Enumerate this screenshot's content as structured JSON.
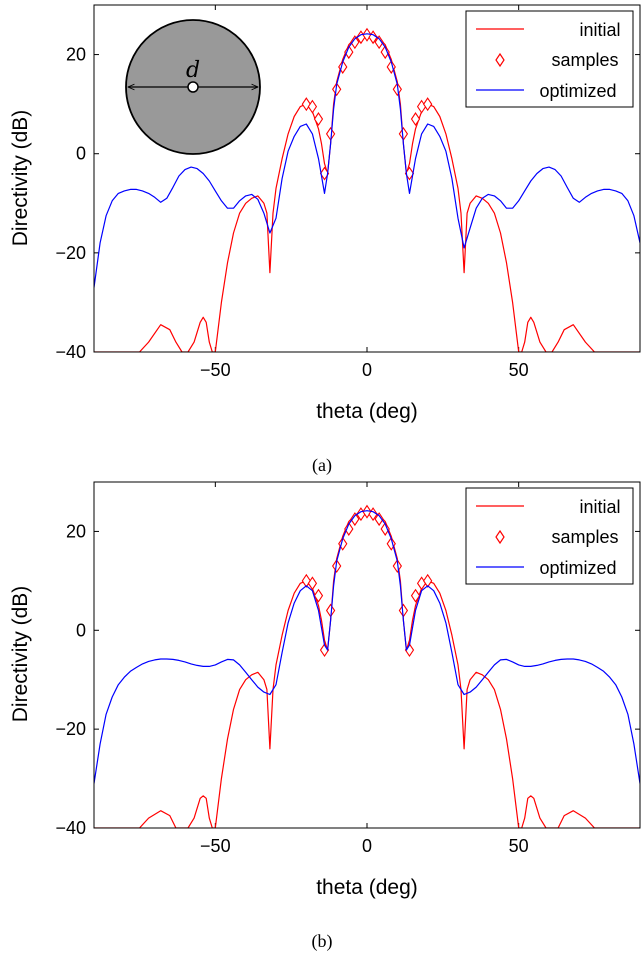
{
  "captions": [
    "(a)",
    "(b)"
  ],
  "chart_data": [
    {
      "type": "line",
      "caption": "(a)",
      "xlabel": "theta (deg)",
      "ylabel": "Directivity (dB)",
      "xlim": [
        -90,
        90
      ],
      "ylim": [
        -40,
        30
      ],
      "xticks": [
        -50,
        0,
        50
      ],
      "yticks": [
        -40,
        -20,
        0,
        20
      ],
      "xtick_labels": [
        "−50",
        "0",
        "50"
      ],
      "ytick_labels": [
        "−40",
        "−20",
        "0",
        "20"
      ],
      "grid": false,
      "legend": {
        "placement": "top-right",
        "entries": [
          "initial",
          "samples",
          "optimized"
        ]
      },
      "inset": {
        "label": "d",
        "shape": "circle-aperture"
      },
      "series": [
        {
          "name": "initial",
          "style": "line",
          "color": "#ff0000",
          "x": [
            -90,
            -85,
            -80,
            -75,
            -72,
            -68,
            -65,
            -63,
            -61,
            -59,
            -57,
            -55,
            -54,
            -53,
            -52,
            -51,
            -50,
            -48,
            -46,
            -44,
            -42,
            -40,
            -38,
            -36,
            -34,
            -33,
            -32,
            -31,
            -30,
            -28,
            -26,
            -24,
            -22,
            -20,
            -18,
            -16,
            -15,
            -14,
            -13,
            -12,
            -11,
            -10,
            -8,
            -6,
            -4,
            -2,
            0,
            2,
            4,
            6,
            8,
            10,
            11,
            12,
            13,
            14,
            15,
            16,
            18,
            20,
            22,
            24,
            26,
            28,
            30,
            31,
            32,
            33,
            34,
            36,
            38,
            40,
            42,
            44,
            46,
            48,
            50,
            51,
            52,
            53,
            54,
            55,
            57,
            59,
            61,
            63,
            65,
            68,
            72,
            75,
            80,
            85,
            90
          ],
          "y": [
            -40,
            -40,
            -40,
            -40,
            -38,
            -34.5,
            -35.5,
            -38,
            -40,
            -40,
            -38,
            -34,
            -33,
            -34,
            -38,
            -40,
            -40,
            -30,
            -22,
            -16,
            -12,
            -10,
            -9,
            -8.5,
            -10,
            -12,
            -24,
            -12,
            -7,
            -1,
            4,
            7.5,
            9.5,
            10,
            8.5,
            5,
            2,
            -2,
            -4,
            2,
            10,
            14.5,
            19,
            22,
            23.3,
            24,
            24.2,
            24,
            23.3,
            22,
            19,
            14.5,
            10,
            2,
            -4,
            -2,
            2,
            5,
            8.5,
            10,
            9.5,
            7.5,
            4,
            -1,
            -7,
            -12,
            -24,
            -12,
            -10,
            -8.5,
            -9,
            -10,
            -12,
            -16,
            -22,
            -30,
            -40,
            -40,
            -38,
            -34,
            -33,
            -34,
            -38,
            -40,
            -40,
            -38,
            -35.5,
            -34.5,
            -38,
            -40,
            -40,
            -40,
            -40
          ]
        },
        {
          "name": "samples",
          "style": "markers",
          "marker": "diamond",
          "color": "#ff0000",
          "x": [
            -20,
            -18,
            -16,
            -14,
            -12,
            -10,
            -8,
            -6,
            -4,
            -2,
            0,
            2,
            4,
            6,
            8,
            10,
            12,
            14,
            16,
            18,
            20
          ],
          "y": [
            10,
            9.5,
            7,
            -4,
            4,
            13,
            17.5,
            20.5,
            22.5,
            23.5,
            24,
            23.5,
            22.5,
            20.5,
            17.5,
            13,
            4,
            -4,
            7,
            9.5,
            10
          ]
        },
        {
          "name": "optimized",
          "style": "line",
          "color": "#0000ff",
          "x": [
            -90,
            -88,
            -86,
            -84,
            -82,
            -80,
            -78,
            -76,
            -74,
            -72,
            -70,
            -68,
            -66,
            -64,
            -62,
            -60,
            -58,
            -56,
            -54,
            -52,
            -50,
            -48,
            -46,
            -44,
            -42,
            -40,
            -38,
            -36,
            -34,
            -32,
            -30,
            -28,
            -26,
            -24,
            -22,
            -20,
            -18,
            -16,
            -15,
            -14,
            -13,
            -12,
            -11,
            -10,
            -8,
            -6,
            -4,
            -2,
            0,
            2,
            4,
            6,
            8,
            10,
            11,
            12,
            13,
            14,
            15,
            16,
            18,
            20,
            22,
            24,
            26,
            28,
            30,
            32,
            34,
            36,
            38,
            40,
            42,
            44,
            46,
            48,
            50,
            52,
            54,
            56,
            58,
            60,
            62,
            64,
            66,
            68,
            70,
            72,
            74,
            76,
            78,
            80,
            82,
            84,
            86,
            88,
            90
          ],
          "y": [
            -27,
            -18,
            -12.5,
            -9.5,
            -8,
            -7.5,
            -7.2,
            -7.2,
            -7.5,
            -8,
            -8.8,
            -9.8,
            -9,
            -6.8,
            -4.5,
            -3.2,
            -2.7,
            -3,
            -4,
            -5.5,
            -7.5,
            -9.5,
            -11,
            -11,
            -9.5,
            -8.5,
            -8.2,
            -9.2,
            -12,
            -16,
            -13,
            -5,
            0.5,
            3.5,
            5.5,
            6,
            4,
            -1,
            -4.5,
            -8,
            -4,
            2,
            9,
            14,
            18.5,
            21.5,
            23.2,
            24,
            24.2,
            24,
            23.2,
            21.5,
            18.5,
            14,
            9,
            2,
            -4,
            -8,
            -4.5,
            -1,
            4,
            6,
            5.5,
            3.5,
            0.5,
            -5,
            -13,
            -19,
            -15,
            -11,
            -9,
            -8.2,
            -8.5,
            -9.5,
            -11,
            -11,
            -9.5,
            -7.5,
            -5.5,
            -4,
            -3,
            -2.7,
            -3.2,
            -4.5,
            -6.8,
            -9,
            -9.8,
            -8.8,
            -8,
            -7.5,
            -7.2,
            -7.2,
            -7.5,
            -8,
            -9.5,
            -12.5,
            -18
          ]
        }
      ]
    },
    {
      "type": "line",
      "caption": "(b)",
      "xlabel": "theta (deg)",
      "ylabel": "Directivity (dB)",
      "xlim": [
        -90,
        90
      ],
      "ylim": [
        -40,
        30
      ],
      "xticks": [
        -50,
        0,
        50
      ],
      "yticks": [
        -40,
        -20,
        0,
        20
      ],
      "xtick_labels": [
        "−50",
        "0",
        "50"
      ],
      "ytick_labels": [
        "−40",
        "−20",
        "0",
        "20"
      ],
      "grid": false,
      "legend": {
        "placement": "top-right",
        "entries": [
          "initial",
          "samples",
          "optimized"
        ]
      },
      "series": [
        {
          "name": "initial",
          "style": "line",
          "color": "#ff0000",
          "x": [
            -90,
            -85,
            -80,
            -75,
            -72,
            -68,
            -65,
            -63,
            -61,
            -59,
            -57,
            -55,
            -54,
            -53,
            -52,
            -51,
            -50,
            -48,
            -46,
            -44,
            -42,
            -40,
            -38,
            -36,
            -34,
            -33,
            -32,
            -31,
            -30,
            -28,
            -26,
            -24,
            -22,
            -20,
            -18,
            -16,
            -15,
            -14,
            -13,
            -12,
            -11,
            -10,
            -8,
            -6,
            -4,
            -2,
            0,
            2,
            4,
            6,
            8,
            10,
            11,
            12,
            13,
            14,
            15,
            16,
            18,
            20,
            22,
            24,
            26,
            28,
            30,
            31,
            32,
            33,
            34,
            36,
            38,
            40,
            42,
            44,
            46,
            48,
            50,
            51,
            52,
            53,
            54,
            55,
            57,
            59,
            61,
            63,
            65,
            68,
            72,
            75,
            80,
            85,
            90
          ],
          "y": [
            -40,
            -40,
            -40,
            -40,
            -38,
            -36.5,
            -37.5,
            -40,
            -40,
            -40,
            -38,
            -34,
            -33.5,
            -34,
            -38,
            -40,
            -40,
            -30,
            -22,
            -16,
            -12,
            -10,
            -9,
            -8.5,
            -10,
            -12,
            -24,
            -12,
            -7,
            -1,
            4,
            7.5,
            9.5,
            10,
            8.5,
            5,
            2,
            -2,
            -4,
            2,
            10,
            14.5,
            19,
            22,
            23.3,
            24,
            24.2,
            24,
            23.3,
            22,
            19,
            14.5,
            10,
            2,
            -4,
            -2,
            2,
            5,
            8.5,
            10,
            9.5,
            7.5,
            4,
            -1,
            -7,
            -12,
            -24,
            -12,
            -10,
            -8.5,
            -9,
            -10,
            -12,
            -16,
            -22,
            -30,
            -40,
            -40,
            -38,
            -34,
            -33.5,
            -34,
            -38,
            -40,
            -40,
            -40,
            -37.5,
            -36.5,
            -38,
            -40,
            -40,
            -40,
            -40
          ]
        },
        {
          "name": "samples",
          "style": "markers",
          "marker": "diamond",
          "color": "#ff0000",
          "x": [
            -20,
            -18,
            -16,
            -14,
            -12,
            -10,
            -8,
            -6,
            -4,
            -2,
            0,
            2,
            4,
            6,
            8,
            10,
            12,
            14,
            16,
            18,
            20
          ],
          "y": [
            10,
            9.5,
            7,
            -4,
            4,
            13,
            17.5,
            20.5,
            22.5,
            23.5,
            24,
            23.5,
            22.5,
            20.5,
            17.5,
            13,
            4,
            -4,
            7,
            9.5,
            10
          ]
        },
        {
          "name": "optimized",
          "style": "line",
          "color": "#0000ff",
          "x": [
            -90,
            -88,
            -86,
            -84,
            -82,
            -80,
            -78,
            -76,
            -74,
            -72,
            -70,
            -68,
            -66,
            -64,
            -62,
            -60,
            -58,
            -56,
            -54,
            -52,
            -50,
            -48,
            -46,
            -44,
            -42,
            -40,
            -38,
            -36,
            -34,
            -32,
            -30,
            -28,
            -26,
            -24,
            -22,
            -20,
            -18,
            -16,
            -15,
            -14,
            -13,
            -12,
            -11,
            -10,
            -8,
            -6,
            -4,
            -2,
            0,
            2,
            4,
            6,
            8,
            10,
            11,
            12,
            13,
            14,
            15,
            16,
            18,
            20,
            22,
            24,
            26,
            28,
            30,
            32,
            34,
            36,
            38,
            40,
            42,
            44,
            46,
            48,
            50,
            52,
            54,
            56,
            58,
            60,
            62,
            64,
            66,
            68,
            70,
            72,
            74,
            76,
            78,
            80,
            82,
            84,
            86,
            88,
            90
          ],
          "y": [
            -31,
            -23,
            -17,
            -13.5,
            -11,
            -9.5,
            -8.3,
            -7.5,
            -6.8,
            -6.3,
            -6,
            -5.8,
            -5.8,
            -5.9,
            -6.1,
            -6.4,
            -6.8,
            -7.1,
            -7.3,
            -7.3,
            -7,
            -6.4,
            -5.9,
            -6,
            -7,
            -8.5,
            -10,
            -11.5,
            -12.5,
            -13,
            -11,
            -4.5,
            1.5,
            5.5,
            8,
            9,
            8,
            4,
            0.5,
            -3,
            -4,
            2,
            9,
            14,
            18.5,
            21.5,
            23.2,
            24,
            24.2,
            24,
            23.2,
            21.5,
            18.5,
            14,
            9,
            2,
            -4,
            -3,
            0.5,
            4,
            8,
            9,
            8,
            5.5,
            1.5,
            -4.5,
            -11,
            -13,
            -12.5,
            -11.5,
            -10,
            -8.5,
            -7,
            -6,
            -5.9,
            -6.4,
            -7,
            -7.3,
            -7.3,
            -7.1,
            -6.8,
            -6.4,
            -6.1,
            -5.9,
            -5.8,
            -5.8,
            -6,
            -6.3,
            -6.8,
            -7.5,
            -8.3,
            -9.5,
            -11,
            -13.5,
            -17,
            -23,
            -31
          ]
        }
      ]
    }
  ]
}
